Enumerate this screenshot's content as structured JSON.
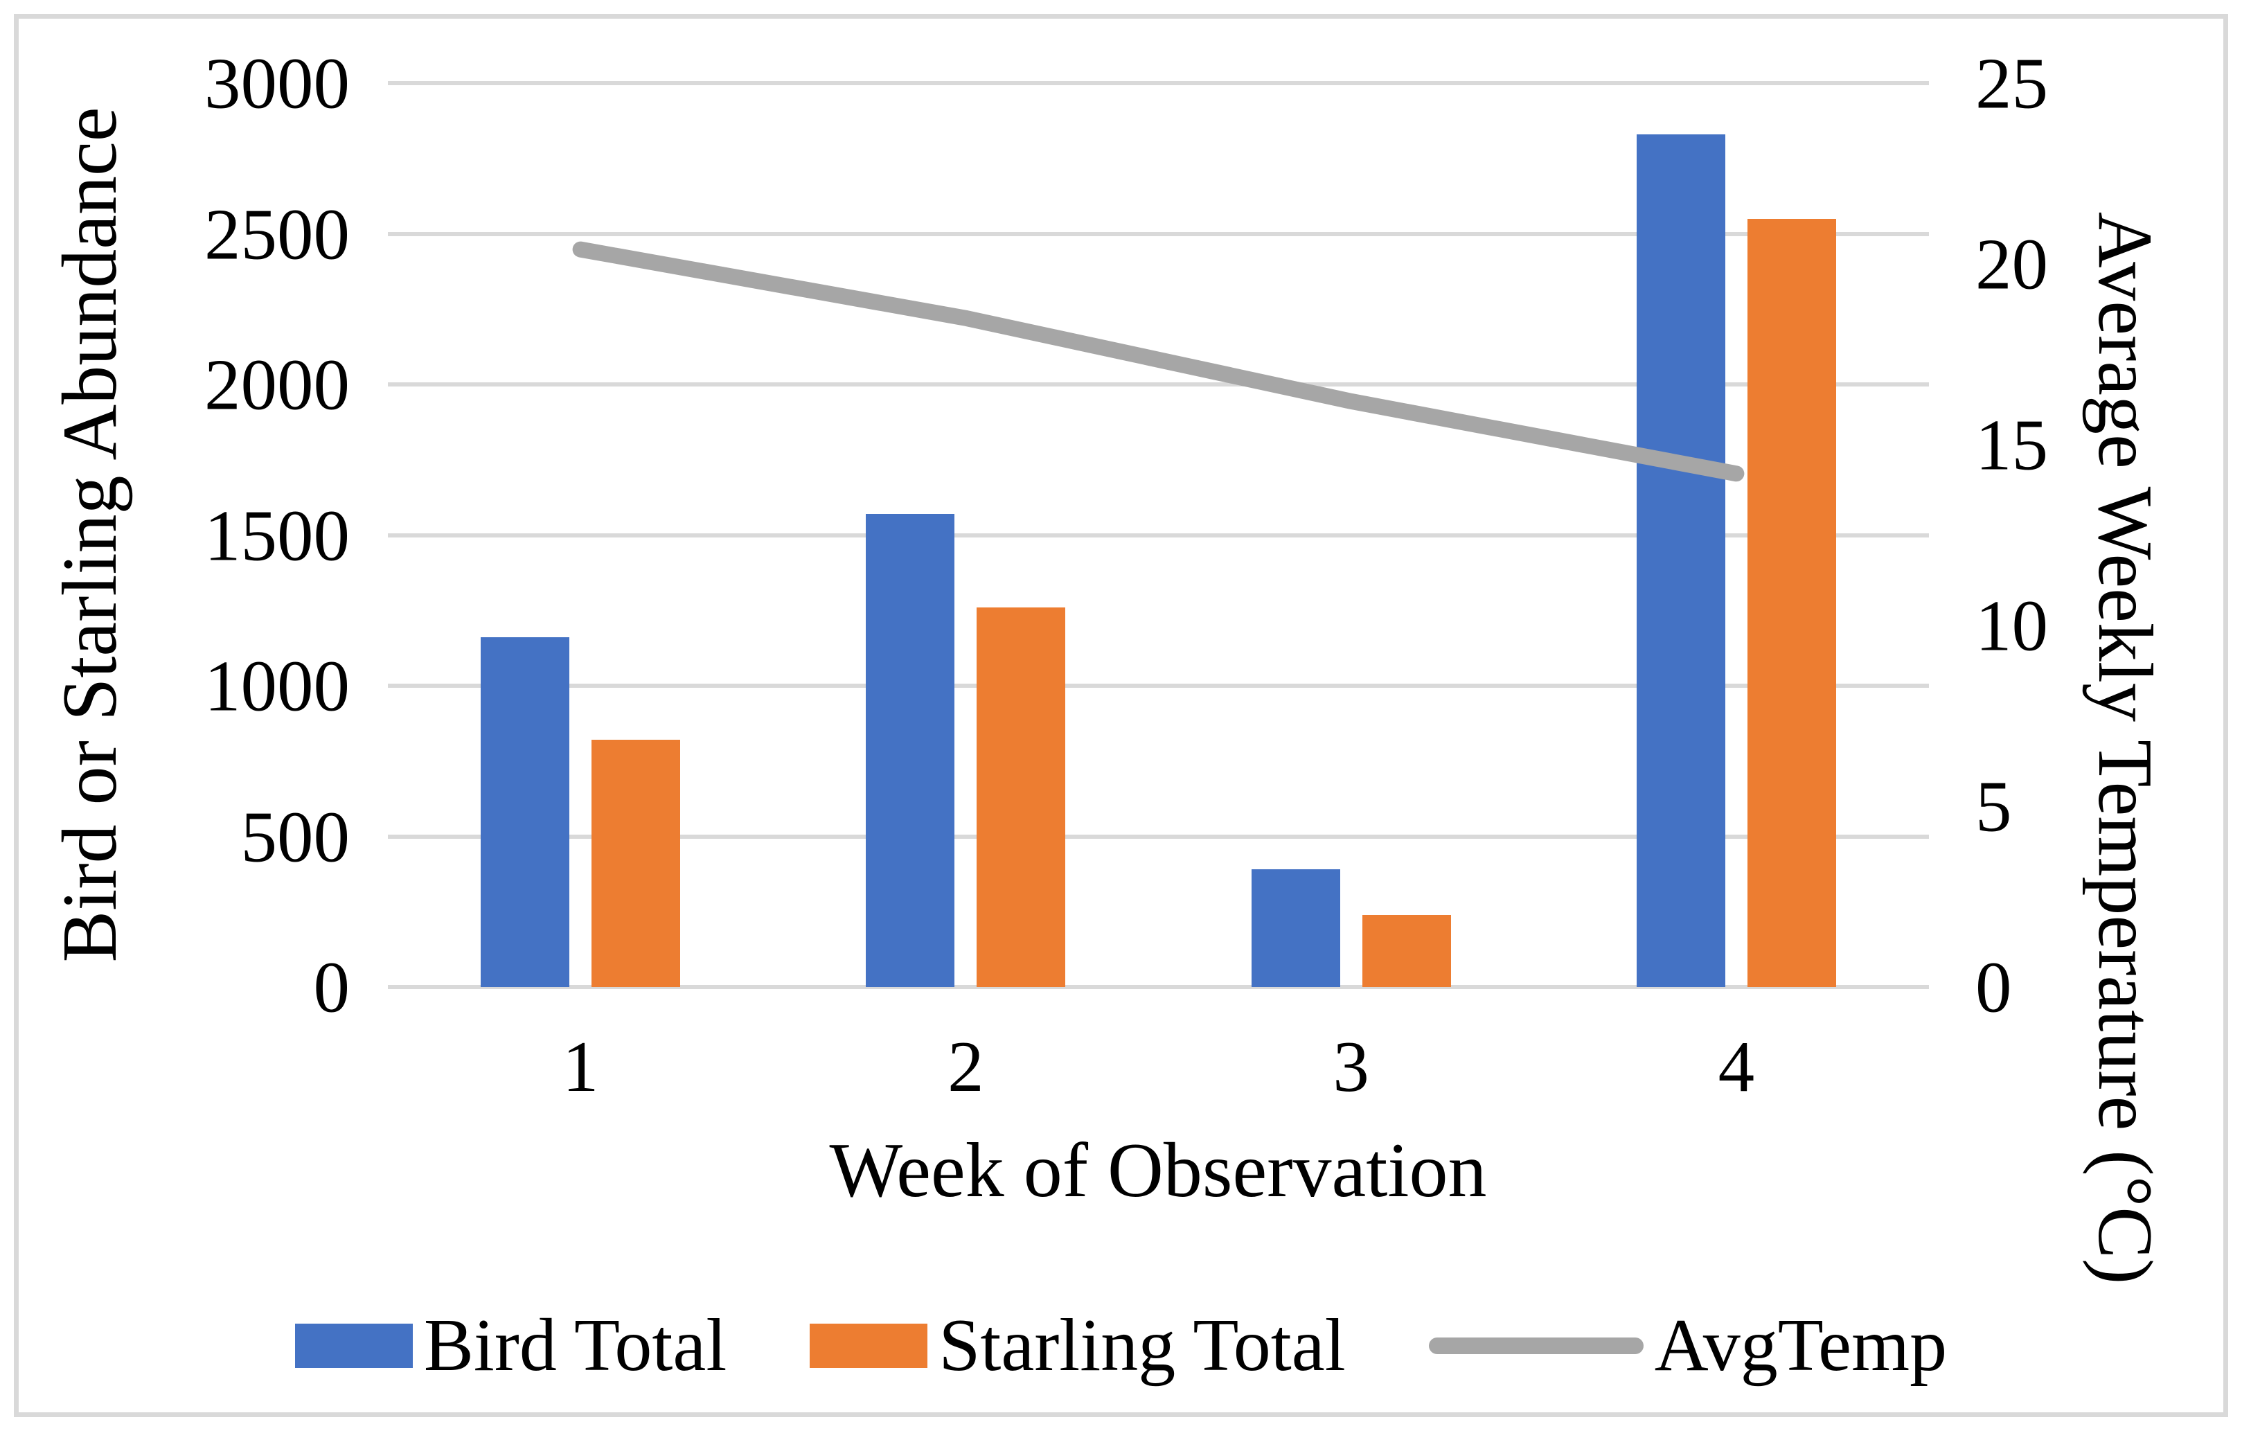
{
  "chart_data": {
    "type": "combo-bar-line",
    "x_title": "Week of Observation",
    "categories": [
      "1",
      "2",
      "3",
      "4"
    ],
    "left_axis": {
      "title": "Bird or Starling Abundance",
      "min": 0,
      "max": 3000,
      "step": 500,
      "ticks": [
        "0",
        "500",
        "1000",
        "1500",
        "2000",
        "2500",
        "3000"
      ]
    },
    "right_axis": {
      "title": "Average Weekly Temperature (°C)",
      "min": 0,
      "max": 25,
      "step": 5,
      "ticks": [
        "0",
        "5",
        "10",
        "15",
        "20",
        "25"
      ]
    },
    "series": [
      {
        "name": "Bird Total",
        "type": "bar",
        "axis": "left",
        "color": "#4472C4",
        "values": [
          1160,
          1570,
          390,
          2830
        ]
      },
      {
        "name": "Starling Total",
        "type": "bar",
        "axis": "left",
        "color": "#ED7D31",
        "values": [
          820,
          1260,
          240,
          2550
        ]
      },
      {
        "name": "AvgTemp",
        "type": "line",
        "axis": "right",
        "color": "#A6A6A6",
        "values": [
          20.4,
          18.5,
          16.2,
          14.2
        ]
      }
    ],
    "grid": true,
    "legend_position": "bottom",
    "gridline_color": "#D9D9D9",
    "frame_border_color": "#D9D9D9",
    "background_color": "#FFFFFF"
  }
}
